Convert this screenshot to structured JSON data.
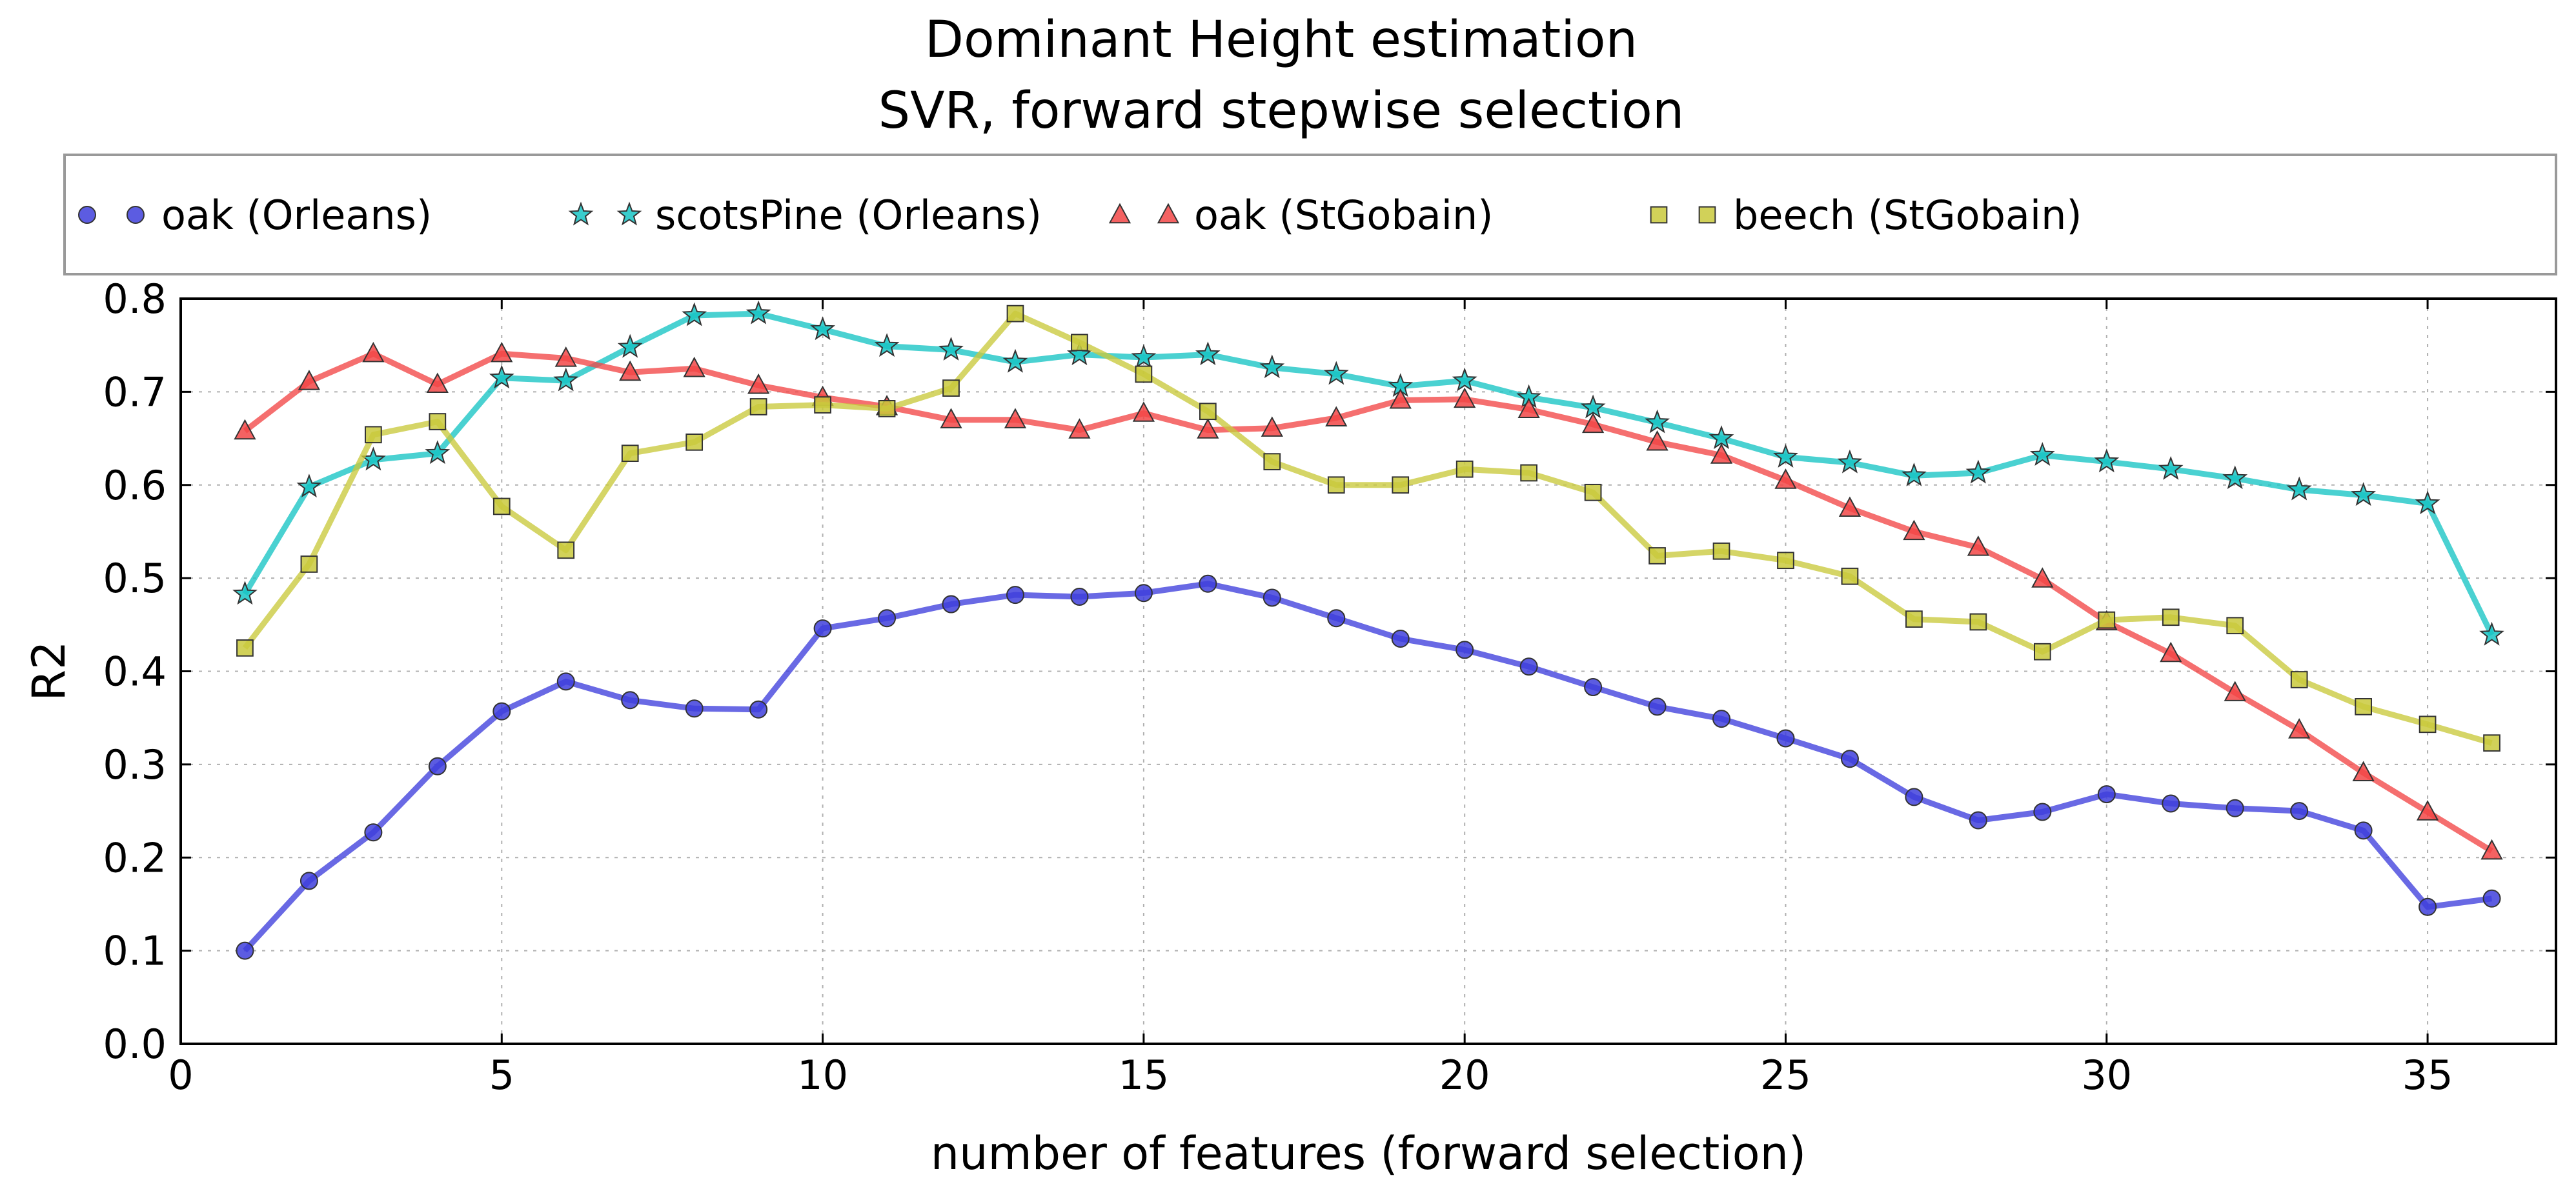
{
  "chart_data": {
    "type": "line",
    "title": "Dominant Height estimation",
    "subtitle": "SVR, forward stepwise selection",
    "xlabel": "number of features (forward selection)",
    "ylabel": "R2",
    "xlim": [
      0,
      37
    ],
    "ylim": [
      0.0,
      0.8
    ],
    "xticks": [
      0,
      5,
      10,
      15,
      20,
      25,
      30,
      35
    ],
    "yticks": [
      "0.0",
      "0.1",
      "0.2",
      "0.3",
      "0.4",
      "0.5",
      "0.6",
      "0.7",
      "0.8"
    ],
    "grid": true,
    "legend_position": "top",
    "x": [
      1,
      2,
      3,
      4,
      5,
      6,
      7,
      8,
      9,
      10,
      11,
      12,
      13,
      14,
      15,
      16,
      17,
      18,
      19,
      20,
      21,
      22,
      23,
      24,
      25,
      26,
      27,
      28,
      29,
      30,
      31,
      32,
      33,
      34,
      35,
      36
    ],
    "series": [
      {
        "name": "oak (Orleans)",
        "color": "#3f3fdc",
        "marker": "circle",
        "values": [
          0.1,
          0.175,
          0.227,
          0.298,
          0.357,
          0.389,
          0.369,
          0.36,
          0.359,
          0.446,
          0.457,
          0.472,
          0.482,
          0.48,
          0.484,
          0.494,
          0.479,
          0.457,
          0.435,
          0.423,
          0.405,
          0.383,
          0.362,
          0.349,
          0.328,
          0.306,
          0.265,
          0.24,
          0.249,
          0.268,
          0.258,
          0.253,
          0.25,
          0.229,
          0.147,
          0.156
        ]
      },
      {
        "name": "scotsPine (Orleans)",
        "color": "#17c4c4",
        "marker": "star",
        "values": [
          0.483,
          0.598,
          0.627,
          0.634,
          0.715,
          0.712,
          0.748,
          0.782,
          0.784,
          0.767,
          0.749,
          0.745,
          0.732,
          0.74,
          0.737,
          0.74,
          0.726,
          0.719,
          0.706,
          0.712,
          0.694,
          0.683,
          0.667,
          0.65,
          0.63,
          0.624,
          0.61,
          0.613,
          0.632,
          0.625,
          0.617,
          0.607,
          0.595,
          0.589,
          0.58,
          0.439
        ]
      },
      {
        "name": "oak (StGobain)",
        "color": "#f24747",
        "marker": "triangle",
        "values": [
          0.658,
          0.711,
          0.741,
          0.708,
          0.741,
          0.736,
          0.721,
          0.725,
          0.707,
          0.694,
          0.684,
          0.67,
          0.67,
          0.659,
          0.677,
          0.659,
          0.661,
          0.672,
          0.691,
          0.692,
          0.681,
          0.665,
          0.646,
          0.632,
          0.605,
          0.575,
          0.55,
          0.533,
          0.499,
          0.453,
          0.419,
          0.377,
          0.337,
          0.291,
          0.249,
          0.207
        ]
      },
      {
        "name": "beech (StGobain)",
        "color": "#c9c93c",
        "marker": "square",
        "values": [
          0.425,
          0.515,
          0.654,
          0.668,
          0.577,
          0.53,
          0.634,
          0.646,
          0.684,
          0.686,
          0.682,
          0.704,
          0.784,
          0.753,
          0.719,
          0.679,
          0.625,
          0.6,
          0.6,
          0.617,
          0.613,
          0.592,
          0.524,
          0.529,
          0.519,
          0.502,
          0.456,
          0.453,
          0.421,
          0.455,
          0.458,
          0.449,
          0.391,
          0.362,
          0.343,
          0.323
        ]
      }
    ]
  }
}
